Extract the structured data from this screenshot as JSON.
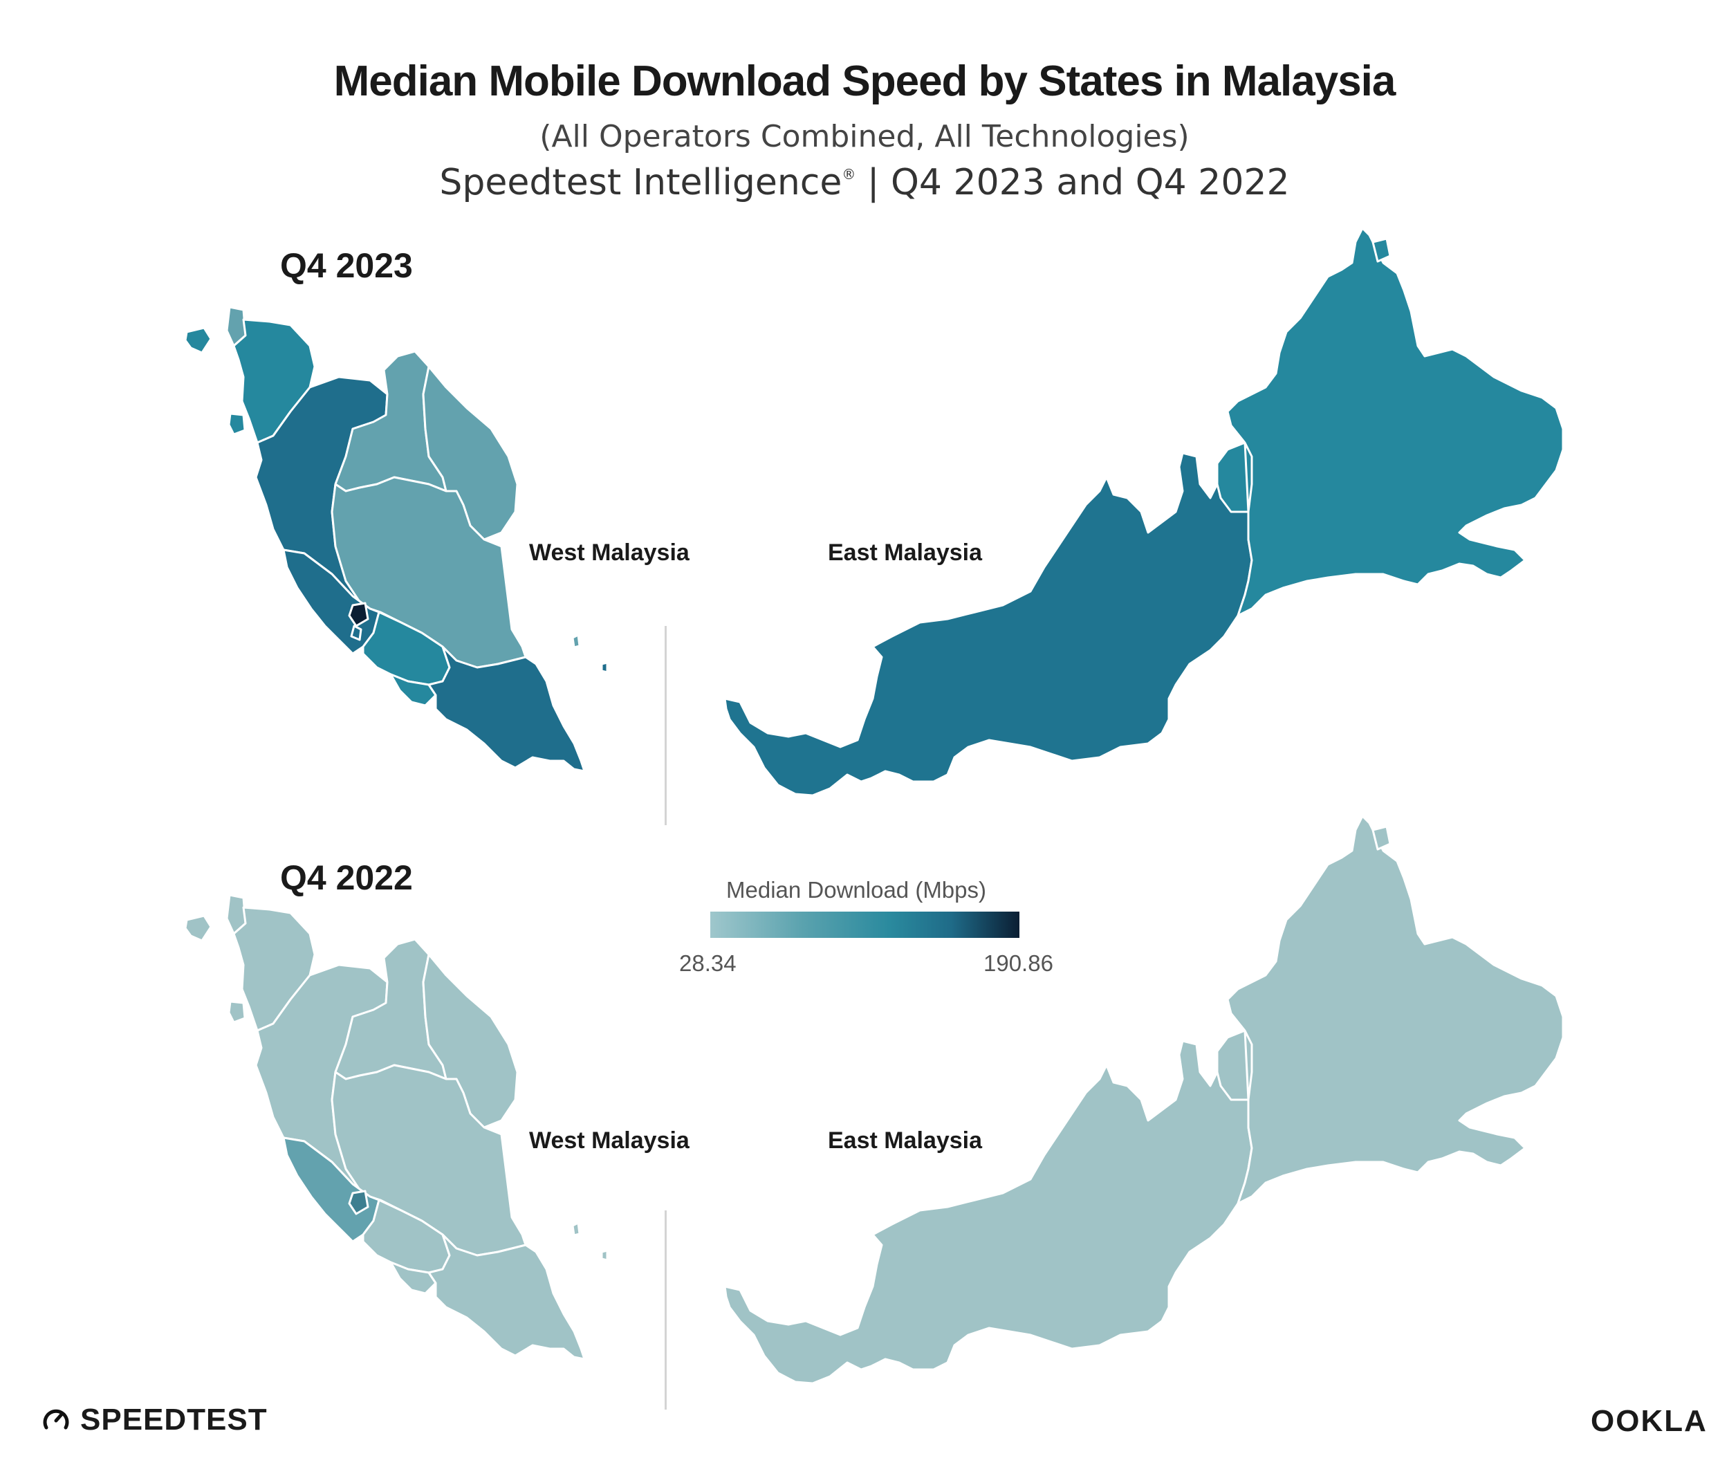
{
  "header": {
    "title": "Median Mobile Download Speed by States in Malaysia",
    "subtitle": "(All Operators Combined, All Technologies)",
    "source": "Speedtest Intelligence",
    "source_mark": "®",
    "source_period": "| Q4 2023 and Q4 2022"
  },
  "panels": [
    {
      "period": "Q4 2023",
      "west_label": "West Malaysia",
      "east_label": "East Malaysia"
    },
    {
      "period": "Q4 2022",
      "west_label": "West Malaysia",
      "east_label": "East Malaysia"
    }
  ],
  "legend": {
    "title": "Median Download (Mbps)",
    "min": "28.34",
    "max": "190.86",
    "colors": [
      "#9fc7cc",
      "#5aa2ae",
      "#2a8a9e",
      "#1f6b88",
      "#0b1e33"
    ]
  },
  "map_colors": {
    "q4_2023": {
      "perlis": "#63a2ae",
      "kedah": "#25889e",
      "perak": "#1f6e8c",
      "kelantan": "#63a2ae",
      "terengganu": "#63a2ae",
      "pahang": "#63a2ae",
      "selangor": "#1f6e8c",
      "kuala_lumpur": "#0b1e33",
      "negeri_sembilan": "#25889e",
      "melaka": "#25889e",
      "johor": "#1f6e8c",
      "sarawak": "#1f7490",
      "sabah": "#25889e"
    },
    "q4_2022": {
      "default": "#a0c3c6",
      "selangor": "#63a2ae",
      "kuala_lumpur": "#3d7f90"
    }
  },
  "logos": {
    "speedtest": "SPEEDTEST",
    "speedtest_icon": "speedometer-icon",
    "ookla": "OOKLA"
  }
}
